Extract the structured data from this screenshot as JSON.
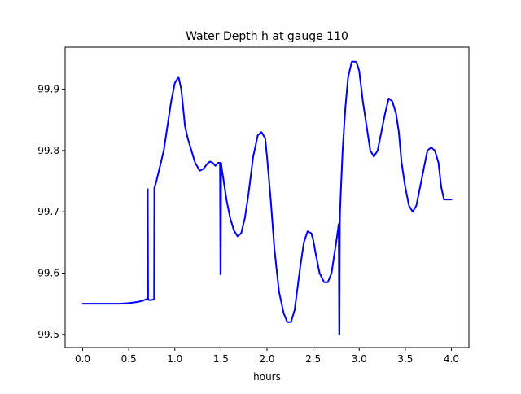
{
  "chart_data": {
    "type": "line",
    "title": "Water Depth h at gauge 110",
    "xlabel": "hours",
    "ylabel": "",
    "xlim": [
      -0.19,
      4.19
    ],
    "ylim": [
      99.4785,
      99.9685
    ],
    "xticks": [
      0.0,
      0.5,
      1.0,
      1.5,
      2.0,
      2.5,
      3.0,
      3.5,
      4.0
    ],
    "xtick_labels": [
      "0.0",
      "0.5",
      "1.0",
      "1.5",
      "2.0",
      "2.5",
      "3.0",
      "3.5",
      "4.0"
    ],
    "yticks": [
      99.5,
      99.6,
      99.7,
      99.8,
      99.9
    ],
    "ytick_labels": [
      "99.5",
      "99.6",
      "99.7",
      "99.8",
      "99.9"
    ],
    "grid": false,
    "line_color": "#0000ff",
    "series": [
      {
        "name": "",
        "x": [
          0.0,
          0.1,
          0.2,
          0.3,
          0.4,
          0.5,
          0.6,
          0.65,
          0.7,
          0.703,
          0.706,
          0.71,
          0.72,
          0.74,
          0.77,
          0.775,
          0.778,
          0.781,
          0.8,
          0.84,
          0.88,
          0.92,
          0.96,
          1.0,
          1.04,
          1.07,
          1.09,
          1.11,
          1.14,
          1.18,
          1.22,
          1.27,
          1.31,
          1.35,
          1.38,
          1.41,
          1.44,
          1.47,
          1.49,
          1.495,
          1.498,
          1.502,
          1.51,
          1.53,
          1.56,
          1.6,
          1.64,
          1.68,
          1.72,
          1.76,
          1.8,
          1.85,
          1.9,
          1.94,
          1.98,
          2.0,
          2.04,
          2.08,
          2.13,
          2.18,
          2.22,
          2.26,
          2.3,
          2.33,
          2.36,
          2.4,
          2.44,
          2.48,
          2.5,
          2.53,
          2.57,
          2.62,
          2.66,
          2.7,
          2.73,
          2.76,
          2.778,
          2.783,
          2.786,
          2.79,
          2.792,
          2.8,
          2.82,
          2.85,
          2.88,
          2.92,
          2.96,
          2.98,
          3.0,
          3.04,
          3.08,
          3.12,
          3.16,
          3.2,
          3.24,
          3.28,
          3.32,
          3.36,
          3.4,
          3.43,
          3.46,
          3.5,
          3.54,
          3.58,
          3.62,
          3.66,
          3.7,
          3.74,
          3.78,
          3.82,
          3.86,
          3.89,
          3.92,
          3.95,
          3.98,
          4.0
        ],
        "y": [
          99.55,
          99.55,
          99.55,
          99.55,
          99.55,
          99.551,
          99.553,
          99.555,
          99.558,
          99.56,
          99.737,
          99.558,
          99.556,
          99.556,
          99.557,
          99.558,
          99.74,
          99.74,
          99.75,
          99.775,
          99.8,
          99.84,
          99.88,
          99.91,
          99.92,
          99.9,
          99.87,
          99.84,
          99.82,
          99.8,
          99.78,
          99.767,
          99.77,
          99.778,
          99.782,
          99.78,
          99.775,
          99.78,
          99.78,
          99.598,
          99.6,
          99.78,
          99.77,
          99.75,
          99.72,
          99.69,
          99.67,
          99.66,
          99.665,
          99.69,
          99.73,
          99.79,
          99.825,
          99.83,
          99.82,
          99.79,
          99.72,
          99.64,
          99.57,
          99.535,
          99.52,
          99.52,
          99.54,
          99.575,
          99.61,
          99.65,
          99.668,
          99.665,
          99.655,
          99.63,
          99.6,
          99.585,
          99.585,
          99.6,
          99.63,
          99.66,
          99.68,
          99.5,
          99.5,
          99.68,
          99.7,
          99.73,
          99.8,
          99.87,
          99.92,
          99.945,
          99.945,
          99.94,
          99.93,
          99.88,
          99.84,
          99.8,
          99.79,
          99.8,
          99.83,
          99.86,
          99.885,
          99.88,
          99.86,
          99.83,
          99.78,
          99.74,
          99.71,
          99.7,
          99.71,
          99.74,
          99.77,
          99.8,
          99.805,
          99.8,
          99.78,
          99.74,
          99.72,
          99.72,
          99.72,
          99.72
        ]
      }
    ]
  }
}
